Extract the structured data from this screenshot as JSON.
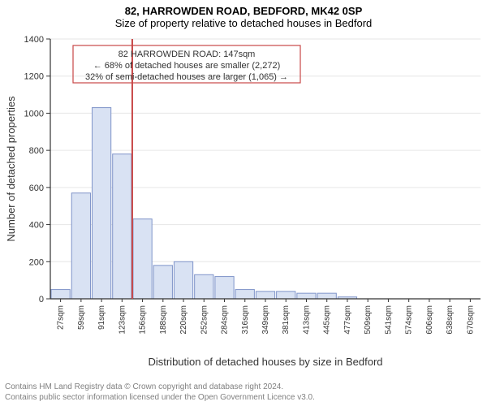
{
  "title": "82, HARROWDEN ROAD, BEDFORD, MK42 0SP",
  "subtitle": "Size of property relative to detached houses in Bedford",
  "chart": {
    "type": "histogram",
    "ylabel": "Number of detached properties",
    "xlabel": "Distribution of detached houses by size in Bedford",
    "ylim": [
      0,
      1400
    ],
    "ytick_step": 200,
    "yticks": [
      0,
      200,
      400,
      600,
      800,
      1000,
      1200,
      1400
    ],
    "x_categories": [
      "27sqm",
      "59sqm",
      "91sqm",
      "123sqm",
      "156sqm",
      "188sqm",
      "220sqm",
      "252sqm",
      "284sqm",
      "316sqm",
      "349sqm",
      "381sqm",
      "413sqm",
      "445sqm",
      "477sqm",
      "509sqm",
      "541sqm",
      "574sqm",
      "606sqm",
      "638sqm",
      "670sqm"
    ],
    "values": [
      50,
      570,
      1030,
      780,
      430,
      180,
      200,
      130,
      120,
      50,
      40,
      40,
      30,
      30,
      10,
      0,
      0,
      0,
      0,
      0,
      0
    ],
    "bar_fill": "#d9e2f3",
    "bar_stroke": "#7f94c9",
    "highlight_index_after": 3,
    "marker_color": "#c84848",
    "background": "#ffffff",
    "grid_color": "#e6e6e6",
    "axis_color": "#333333",
    "label_fontsize": 13,
    "tick_fontsize": 11
  },
  "annotation": {
    "line1": "82 HARROWDEN ROAD: 147sqm",
    "line2": "← 68% of detached houses are smaller (2,272)",
    "line3": "32% of semi-detached houses are larger (1,065) →",
    "box_stroke": "#c84848"
  },
  "footer": {
    "line1": "Contains HM Land Registry data © Crown copyright and database right 2024.",
    "line2": "Contains public sector information licensed under the Open Government Licence v3.0."
  }
}
